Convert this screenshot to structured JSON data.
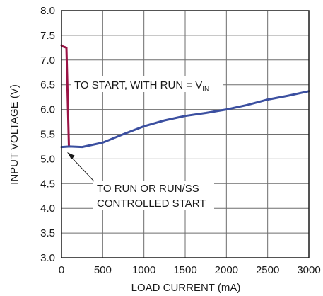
{
  "chart_data": {
    "type": "line",
    "title": "",
    "xlabel": "LOAD CURRENT (mA)",
    "ylabel": "INPUT VOLTAGE (V)",
    "xlim": [
      0,
      3000
    ],
    "ylim": [
      3.0,
      8.0
    ],
    "xticks": [
      0,
      500,
      1000,
      1500,
      2000,
      2500,
      3000
    ],
    "yticks": [
      3.0,
      3.5,
      4.0,
      4.5,
      5.0,
      5.5,
      6.0,
      6.5,
      7.0,
      7.5,
      8.0
    ],
    "xtick_labels": [
      "0",
      "500",
      "1000",
      "1500",
      "2000",
      "2500",
      "3000"
    ],
    "ytick_labels": [
      "3.0",
      "3.5",
      "4.0",
      "4.5",
      "5.0",
      "5.5",
      "6.0",
      "6.5",
      "7.0",
      "7.5",
      "8.0"
    ],
    "grid": true,
    "series": [
      {
        "color": "#9b1446",
        "x": [
          0,
          10,
          60,
          90,
          100
        ],
        "y": [
          7.3,
          7.28,
          7.25,
          5.25,
          5.25
        ]
      },
      {
        "color": "#3b4fa0",
        "x": [
          0,
          100,
          250,
          500,
          750,
          1000,
          1250,
          1500,
          1750,
          2000,
          2250,
          2500,
          2750,
          3000
        ],
        "y": [
          5.24,
          5.25,
          5.24,
          5.33,
          5.5,
          5.66,
          5.78,
          5.87,
          5.93,
          6.0,
          6.09,
          6.2,
          6.28,
          6.37
        ]
      }
    ],
    "annotations": [
      {
        "text": "TO START, WITH RUN = V",
        "subscript": "IN"
      },
      {
        "text": "TO RUN OR RUN/SS"
      },
      {
        "text": "CONTROLLED START"
      }
    ]
  }
}
